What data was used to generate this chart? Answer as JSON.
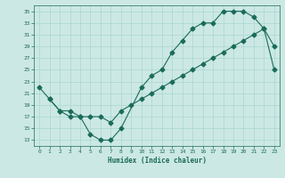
{
  "xlabel": "Humidex (Indice chaleur)",
  "bg_color": "#cce8e4",
  "line_color": "#1a6b5a",
  "xlim": [
    -0.5,
    23.5
  ],
  "ylim": [
    12,
    36
  ],
  "yticks": [
    13,
    15,
    17,
    19,
    21,
    23,
    25,
    27,
    29,
    31,
    33,
    35
  ],
  "xticks": [
    0,
    1,
    2,
    3,
    4,
    5,
    6,
    7,
    8,
    9,
    10,
    11,
    12,
    13,
    14,
    15,
    16,
    17,
    18,
    19,
    20,
    21,
    22,
    23
  ],
  "line1_x": [
    0,
    1,
    2,
    3,
    4,
    5,
    6,
    7,
    8,
    10,
    11,
    12,
    13,
    14,
    15,
    16,
    17,
    18,
    19,
    20,
    21,
    22,
    23
  ],
  "line1_y": [
    22,
    20,
    18,
    17,
    17,
    14,
    13,
    13,
    15,
    22,
    24,
    25,
    28,
    30,
    32,
    33,
    33,
    35,
    35,
    35,
    34,
    32,
    29
  ],
  "line2_x": [
    1,
    2,
    3,
    4,
    5,
    6,
    7,
    8,
    9,
    10,
    11,
    12,
    13,
    14,
    15,
    16,
    17,
    18,
    19,
    20,
    21,
    22,
    23
  ],
  "line2_y": [
    20,
    18,
    18,
    17,
    17,
    17,
    16,
    18,
    19,
    20,
    21,
    22,
    23,
    24,
    25,
    26,
    27,
    28,
    29,
    30,
    31,
    32,
    25
  ],
  "grid_color": "#a8d8d0",
  "marker": "D",
  "marker_size": 2.5,
  "linewidth": 0.8
}
